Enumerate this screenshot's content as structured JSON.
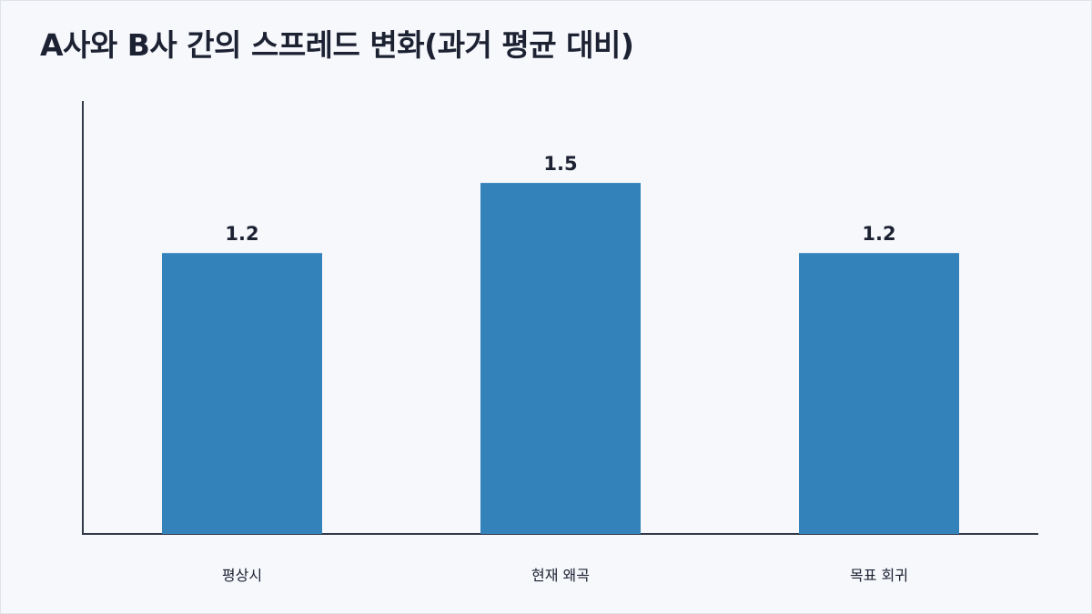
{
  "chart_data": {
    "type": "bar",
    "title": "A사와 B사 간의 스프레드 변화(과거 평균 대비)",
    "categories": [
      "평상시",
      "현재 왜곡",
      "목표 회귀"
    ],
    "values": [
      1.2,
      1.5,
      1.2
    ],
    "value_labels": [
      "1.2",
      "1.5",
      "1.2"
    ],
    "xlabel": "",
    "ylabel": "",
    "ylim": [
      0,
      1.85
    ],
    "grid": false,
    "bar_color": "#3382b9"
  },
  "colors": {
    "background": "#f6f8fc",
    "text": "#1d2233",
    "axis": "#333a48"
  }
}
